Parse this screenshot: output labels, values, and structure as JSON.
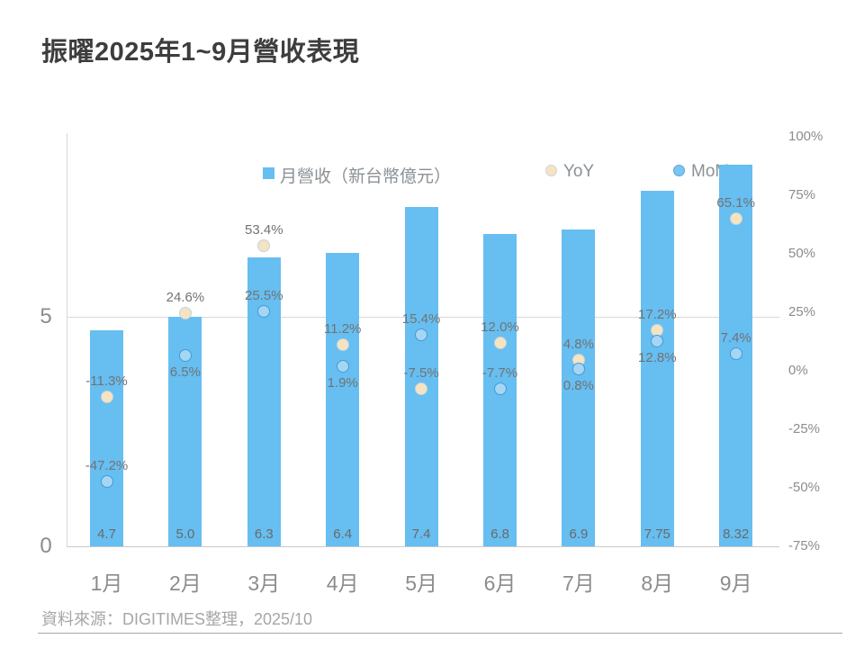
{
  "title": "振曜2025年1~9月營收表現",
  "legend": {
    "revenue_label": "月營收（新台幣億元）",
    "yoy_label": "YoY",
    "mom_label": "MoM"
  },
  "footer": {
    "source": "資料來源：DIGITIMES整理，2025/10"
  },
  "colors": {
    "bar": "#66bef1",
    "yoy_marker_fill": "#f5e3c2",
    "yoy_marker_border": "#c4d3dc",
    "mom_marker_fill": "#a6d6f3",
    "mom_marker_border": "#3e9edc",
    "gridline": "#d9d9d9",
    "title_text": "#3d3d3d",
    "axis_text": "#8c8c8c",
    "data_label_text": "#737373"
  },
  "chart_data": {
    "type": "bar",
    "title": "振曜2025年1~9月營收表現",
    "categories": [
      "1月",
      "2月",
      "3月",
      "4月",
      "5月",
      "6月",
      "7月",
      "8月",
      "9月"
    ],
    "series": [
      {
        "name": "月營收（新台幣億元）",
        "type": "bar",
        "axis": "left",
        "values": [
          4.7,
          5.0,
          6.3,
          6.4,
          7.4,
          6.8,
          6.9,
          7.75,
          8.32
        ],
        "labels": [
          "4.7",
          "5.0",
          "6.3",
          "6.4",
          "7.4",
          "6.8",
          "6.9",
          "7.75",
          "8.32"
        ]
      },
      {
        "name": "YoY",
        "type": "scatter",
        "axis": "right",
        "values": [
          -11.3,
          24.6,
          53.4,
          11.2,
          -7.5,
          12.0,
          4.8,
          17.2,
          65.1
        ],
        "labels": [
          "-11.3%",
          "24.6%",
          "53.4%",
          "11.2%",
          "-7.5%",
          "12.0%",
          "4.8%",
          "17.2%",
          "65.1%"
        ],
        "label_pos": [
          "above",
          "above",
          "above",
          "above",
          "above",
          "above",
          "above",
          "above",
          "above"
        ]
      },
      {
        "name": "MoM",
        "type": "scatter",
        "axis": "right",
        "values": [
          -47.2,
          6.5,
          25.5,
          1.9,
          15.4,
          -7.7,
          0.8,
          12.8,
          7.4
        ],
        "labels": [
          "-47.2%",
          "6.5%",
          "25.5%",
          "1.9%",
          "15.4%",
          "-7.7%",
          "0.8%",
          "12.8%",
          "7.4%"
        ],
        "label_pos": [
          "above",
          "below",
          "above",
          "below",
          "above",
          "above",
          "below",
          "below",
          "above"
        ]
      }
    ],
    "left_axis": {
      "ticks": [
        "5",
        "0"
      ],
      "values": [
        5,
        0
      ],
      "min": 0
    },
    "right_axis": {
      "ticks": [
        "100%",
        "75%",
        "50%",
        "25%",
        "0%",
        "-25%",
        "-50%",
        "-75%"
      ],
      "max": 100,
      "min": -75,
      "step": 25
    },
    "grid": "single horizontal gridline at left-axis value 5; baseline at 0",
    "legend_position": "top"
  }
}
